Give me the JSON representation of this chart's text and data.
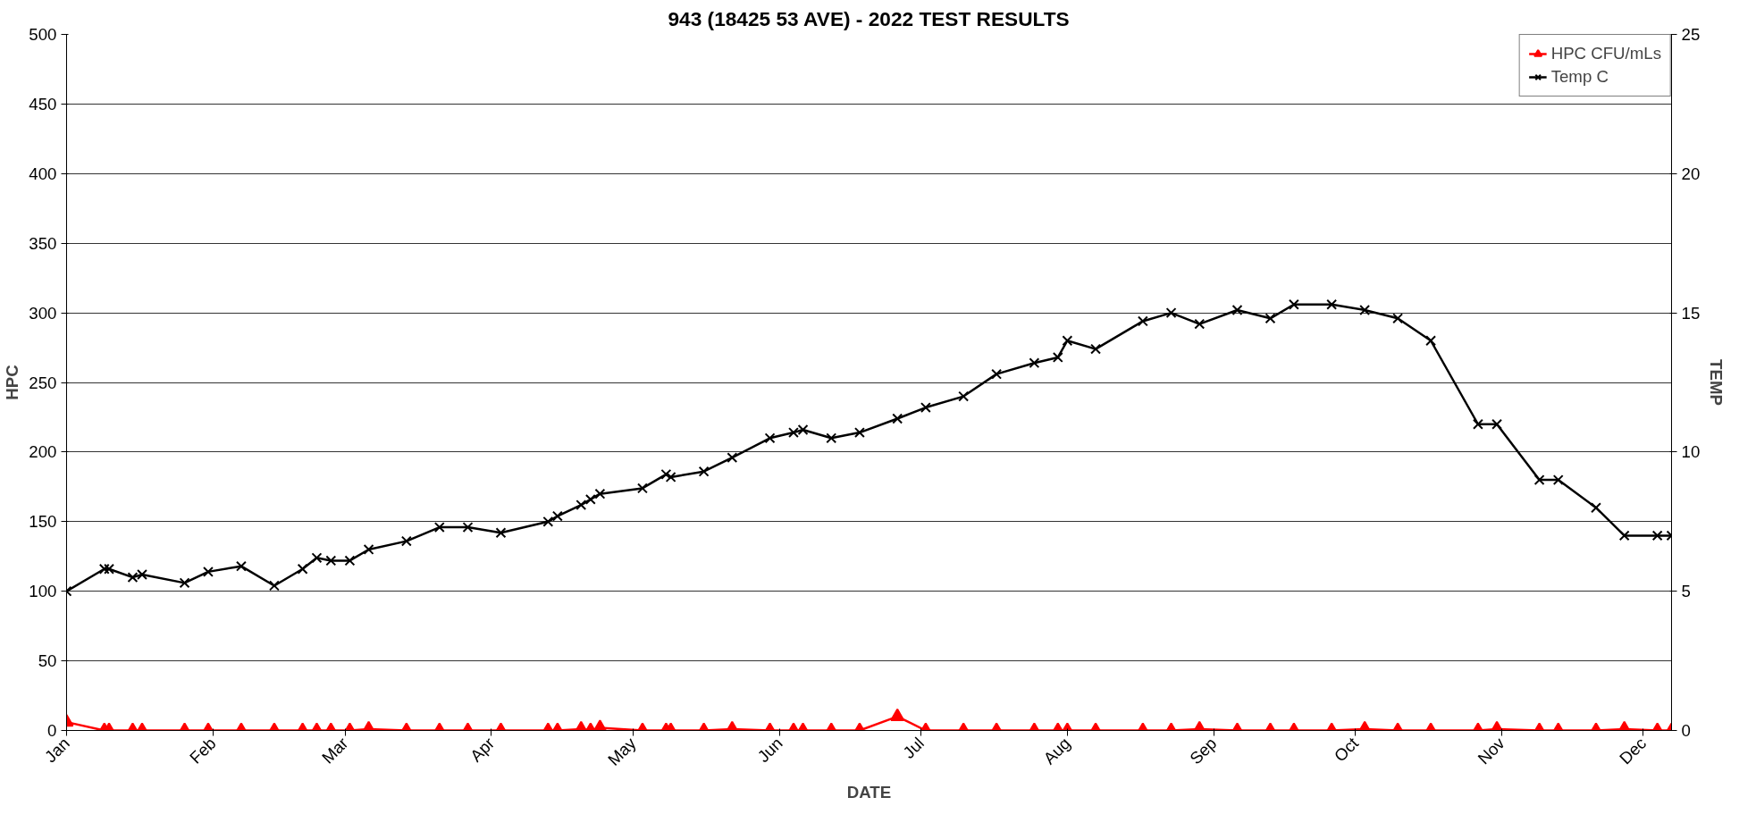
{
  "chart_data": {
    "type": "line",
    "title": "943 (18425 53 AVE) - 2022 TEST RESULTS",
    "xlabel": "DATE",
    "ylabel": "HPC",
    "y2label": "TEMP",
    "x": [
      "2022-01-01",
      "2022-01-09",
      "2022-01-10",
      "2022-01-15",
      "2022-01-17",
      "2022-01-26",
      "2022-01-31",
      "2022-02-07",
      "2022-02-14",
      "2022-02-20",
      "2022-02-23",
      "2022-02-26",
      "2022-03-02",
      "2022-03-06",
      "2022-03-14",
      "2022-03-21",
      "2022-03-27",
      "2022-04-03",
      "2022-04-13",
      "2022-04-15",
      "2022-04-20",
      "2022-04-22",
      "2022-04-24",
      "2022-05-03",
      "2022-05-08",
      "2022-05-09",
      "2022-05-16",
      "2022-05-22",
      "2022-05-30",
      "2022-06-04",
      "2022-06-06",
      "2022-06-12",
      "2022-06-18",
      "2022-06-26",
      "2022-07-02",
      "2022-07-10",
      "2022-07-17",
      "2022-07-25",
      "2022-07-30",
      "2022-08-01",
      "2022-08-07",
      "2022-08-17",
      "2022-08-23",
      "2022-08-29",
      "2022-09-06",
      "2022-09-13",
      "2022-09-18",
      "2022-09-26",
      "2022-10-03",
      "2022-10-10",
      "2022-10-17",
      "2022-10-27",
      "2022-10-31",
      "2022-11-09",
      "2022-11-13",
      "2022-11-21",
      "2022-11-27",
      "2022-12-04",
      "2022-12-07"
    ],
    "series": [
      {
        "name": "HPC CFU/mLs",
        "color": "#ff0000",
        "marker": "triangle",
        "values": [
          6,
          0,
          0,
          0,
          0,
          0,
          0,
          0,
          0,
          0,
          0,
          0,
          0,
          1,
          0,
          0,
          0,
          0,
          0,
          0,
          1,
          0,
          2,
          0,
          0,
          0,
          0,
          1,
          0,
          0,
          0,
          0,
          0,
          10,
          0,
          0,
          0,
          0,
          0,
          0,
          0,
          0,
          0,
          1,
          0,
          0,
          0,
          0,
          1,
          0,
          0,
          0,
          1,
          0,
          0,
          0,
          1,
          0,
          0
        ]
      },
      {
        "name": "Temp C",
        "color": "#000000",
        "marker": "cross",
        "axis": "y2",
        "values": [
          5.0,
          5.8,
          5.8,
          5.5,
          5.6,
          5.3,
          5.7,
          5.9,
          5.2,
          5.8,
          6.2,
          6.1,
          6.1,
          6.5,
          6.8,
          7.3,
          7.3,
          7.1,
          7.5,
          7.7,
          8.1,
          8.3,
          8.5,
          8.7,
          9.2,
          9.1,
          9.3,
          9.8,
          10.5,
          10.7,
          10.8,
          10.5,
          10.7,
          11.2,
          11.6,
          12.0,
          12.8,
          13.2,
          13.4,
          14.0,
          13.7,
          14.7,
          15.0,
          14.6,
          15.1,
          14.8,
          15.3,
          15.3,
          15.1,
          14.8,
          14.0,
          11.0,
          11.0,
          9.0,
          9.0,
          8.0,
          7.0,
          7.0,
          7.0
        ]
      }
    ],
    "xlim": [
      "2022-01-01",
      "2022-12-07"
    ],
    "xticks": [
      {
        "value": "2022-01-01",
        "label": "Jan"
      },
      {
        "value": "2022-02-01",
        "label": "Feb"
      },
      {
        "value": "2022-03-01",
        "label": "Mar"
      },
      {
        "value": "2022-04-01",
        "label": "Apr"
      },
      {
        "value": "2022-05-01",
        "label": "May"
      },
      {
        "value": "2022-06-01",
        "label": "Jun"
      },
      {
        "value": "2022-07-01",
        "label": "Jul"
      },
      {
        "value": "2022-08-01",
        "label": "Aug"
      },
      {
        "value": "2022-09-01",
        "label": "Sep"
      },
      {
        "value": "2022-10-01",
        "label": "Oct"
      },
      {
        "value": "2022-11-01",
        "label": "Nov"
      },
      {
        "value": "2022-12-01",
        "label": "Dec"
      }
    ],
    "ylim": [
      0,
      500
    ],
    "yticks": [
      0,
      50,
      100,
      150,
      200,
      250,
      300,
      350,
      400,
      450,
      500
    ],
    "y2lim": [
      0,
      25
    ],
    "y2ticks": [
      0,
      5,
      10,
      15,
      20,
      25
    ],
    "grid": "y",
    "legend": "top right",
    "line_style": "solid"
  }
}
